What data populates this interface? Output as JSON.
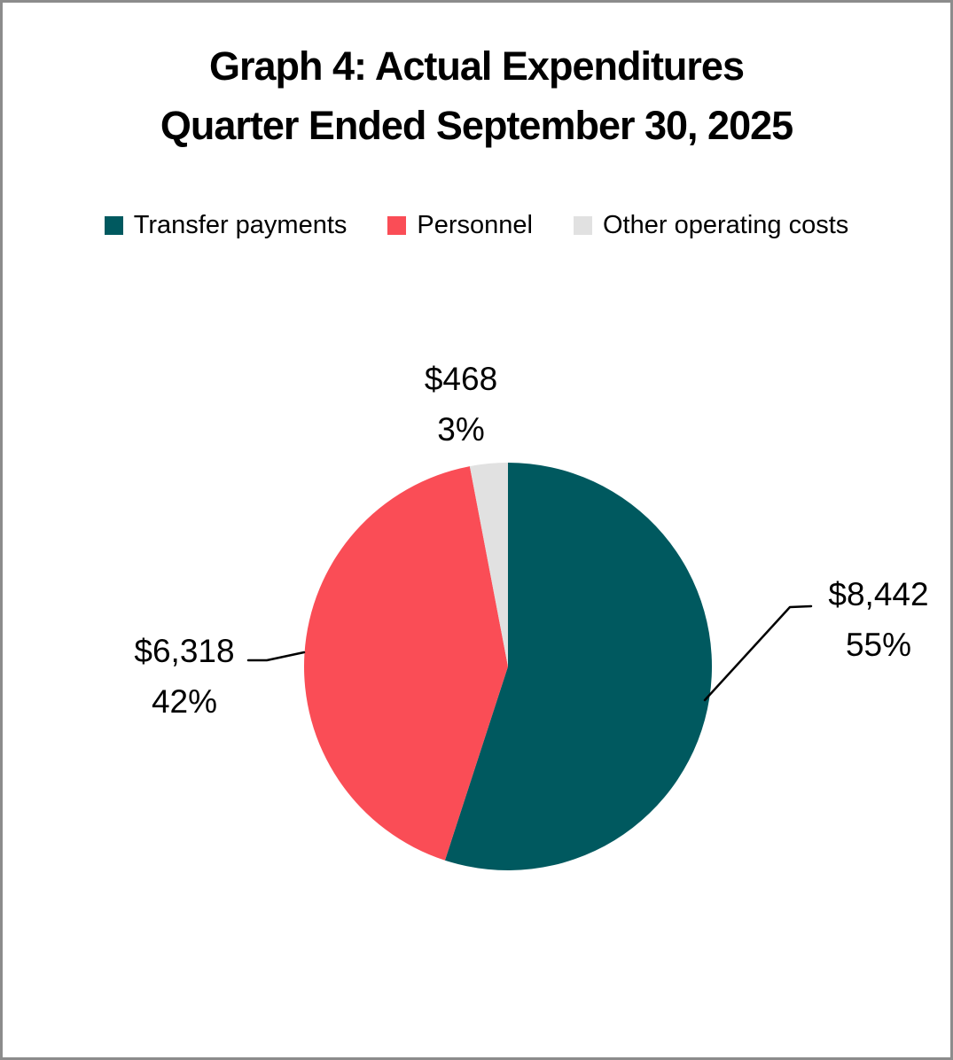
{
  "title": {
    "line1": "Graph 4: Actual Expenditures",
    "line2": "Quarter Ended September 30, 2025"
  },
  "chart_data": {
    "type": "pie",
    "title": "Graph 4: Actual Expenditures",
    "subtitle": "Quarter Ended September 30, 2025",
    "legend_position": "top",
    "start_angle_deg": 0,
    "direction": "clockwise",
    "slices": [
      {
        "label": "Transfer payments",
        "value": 8442,
        "percent": 55,
        "value_label": "$8,442",
        "percent_label": "55%",
        "color": "#00595F"
      },
      {
        "label": "Personnel",
        "value": 6318,
        "percent": 42,
        "value_label": "$6,318",
        "percent_label": "42%",
        "color": "#FA4D56"
      },
      {
        "label": "Other operating costs",
        "value": 468,
        "percent": 3,
        "value_label": "$468",
        "percent_label": "3%",
        "color": "#E1E1E1"
      }
    ]
  },
  "colors": {
    "background": "#FFFFFF",
    "frame_border": "#8C8C8C",
    "leader_line": "#000000",
    "text": "#000000"
  }
}
